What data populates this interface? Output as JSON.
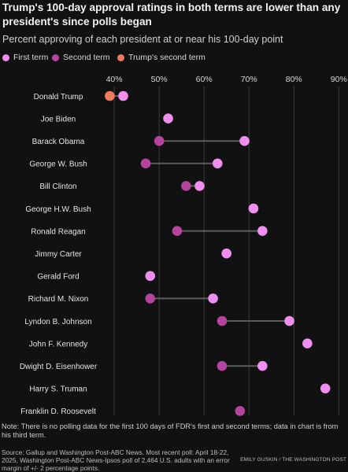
{
  "title": "Trump's 100-day approval ratings in both terms are lower than any president's since polls began",
  "subtitle": "Percent approving of each president at or near his 100-day point",
  "legend": {
    "first_term": "First term",
    "second_term": "Second term",
    "trump_second_term": "Trump's second term"
  },
  "colors": {
    "first_term": "#f08ef0",
    "second_term": "#b5449e",
    "trump_second_term": "#f07a5c",
    "background": "#111111",
    "grid": "#3a3a3a",
    "connector": "#5c5c5c"
  },
  "chart_data": {
    "type": "scatter",
    "title": "Trump's 100-day approval ratings in both terms are lower than any president's since polls began",
    "subtitle": "Percent approving of each president at or near his 100-day point",
    "xlim": [
      37,
      91
    ],
    "x_ticks": [
      40,
      50,
      60,
      70,
      80,
      90
    ],
    "x_tick_labels": [
      "40%",
      "50%",
      "60%",
      "70%",
      "80%",
      "90%"
    ],
    "grid": true,
    "legend_position": "top",
    "categories": [
      "Donald Trump",
      "Joe Biden",
      "Barack Obama",
      "George W. Bush",
      "Bill Clinton",
      "George H.W. Bush",
      "Ronald Reagan",
      "Jimmy Carter",
      "Gerald Ford",
      "Richard M. Nixon",
      "Lyndon B. Johnson",
      "John F. Kennedy",
      "Dwight D. Eisenhower",
      "Harry S. Truman",
      "Franklin D. Roosevelt"
    ],
    "series": [
      {
        "name": "First term",
        "key": "first_term",
        "values": [
          42,
          52,
          69,
          63,
          59,
          71,
          73,
          65,
          48,
          62,
          79,
          83,
          73,
          87,
          null
        ]
      },
      {
        "name": "Second term",
        "key": "second_term",
        "values": [
          null,
          null,
          50,
          47,
          56,
          null,
          54,
          null,
          null,
          48,
          64,
          null,
          64,
          null,
          68
        ]
      },
      {
        "name": "Trump's second term",
        "key": "trump_second_term",
        "values": [
          39,
          null,
          null,
          null,
          null,
          null,
          null,
          null,
          null,
          null,
          null,
          null,
          null,
          null,
          null
        ]
      }
    ]
  },
  "note": "Note: There is no polling data for the first 100 days of FDR's first and second terms; data in chart is from his third term.",
  "source": "Source: Gallup and Washington Post-ABC News. Most recent poll: April 18-22, 2025, Washington Post-ABC News-Ipsos poll of 2,464 U.S. adults with an error margin of +/- 2 percentage points.",
  "credit": "EMILY GUSKIN / THE WASHINGTON POST"
}
